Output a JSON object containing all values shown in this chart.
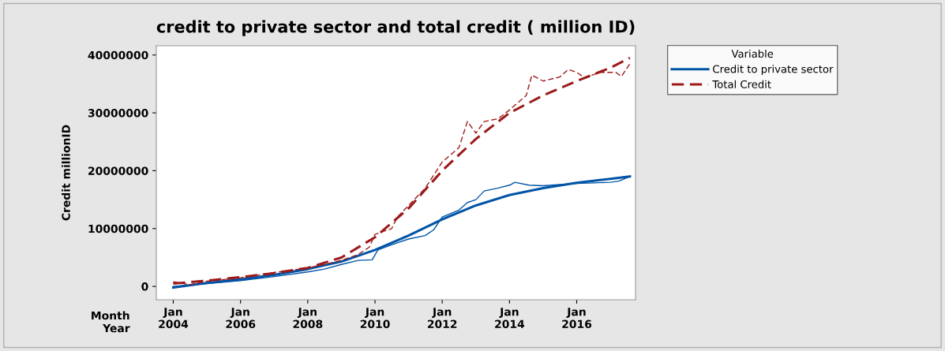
{
  "chart_data": {
    "type": "line",
    "title": "credit to private sector and total credit ( million ID)",
    "ylabel": "Credit millionID",
    "legend_title": "Variable",
    "legend": "top right",
    "grid": false,
    "marker": "none",
    "xlim": [
      "2003-07",
      "2017-10"
    ],
    "xticks": [
      {
        "value": "2004-01",
        "label": "Jan\n2004"
      },
      {
        "value": "2006-01",
        "label": "Jan\n2006"
      },
      {
        "value": "2008-01",
        "label": "Jan\n2008"
      },
      {
        "value": "2010-01",
        "label": "Jan\n2010"
      },
      {
        "value": "2012-01",
        "label": "Jan\n2012"
      },
      {
        "value": "2014-01",
        "label": "Jan\n2014"
      },
      {
        "value": "2016-01",
        "label": "Jan\n2016"
      }
    ],
    "ylim": [
      -2300000,
      41600000
    ],
    "yticks": [
      0,
      10000000,
      20000000,
      30000000,
      40000000
    ],
    "annotations": [
      "Month\nYear"
    ],
    "series": [
      {
        "name": "Credit to private sector",
        "color": "#0054a6",
        "line_style": "solid",
        "x": [
          "2004-01",
          "2005-01",
          "2006-01",
          "2007-01",
          "2008-01",
          "2009-01",
          "2010-01",
          "2011-01",
          "2012-01",
          "2013-01",
          "2014-01",
          "2015-01",
          "2016-01",
          "2017-01",
          "2017-08"
        ],
        "values": [
          -200000,
          600000,
          1200000,
          2000000,
          3000000,
          4300000,
          6300000,
          8800000,
          11600000,
          14000000,
          15800000,
          17000000,
          17900000,
          18600000,
          19000000
        ]
      },
      {
        "color": "#0054a6",
        "line_style": "solid",
        "x": [
          "2004-01",
          "2005-01",
          "2006-01",
          "2007-01",
          "2008-01",
          "2008-07",
          "2009-01",
          "2009-07",
          "2009-12",
          "2010-02",
          "2010-07",
          "2011-01",
          "2011-07",
          "2011-10",
          "2012-01",
          "2012-07",
          "2012-10",
          "2013-01",
          "2013-04",
          "2013-09",
          "2014-01",
          "2014-03",
          "2014-08",
          "2015-01",
          "2015-07",
          "2016-01",
          "2016-07",
          "2017-01",
          "2017-04",
          "2017-08"
        ],
        "values": [
          0,
          500000,
          1000000,
          1700000,
          2500000,
          3000000,
          3800000,
          4500000,
          4600000,
          6300000,
          7200000,
          8200000,
          8800000,
          9800000,
          12000000,
          13200000,
          14500000,
          15000000,
          16500000,
          17000000,
          17500000,
          18000000,
          17500000,
          17400000,
          17600000,
          17800000,
          17900000,
          18000000,
          18200000,
          19000000
        ]
      },
      {
        "name": "Total Credit",
        "color": "#9c1a1a",
        "line_style": "dashed",
        "x": [
          "2004-01",
          "2005-01",
          "2006-01",
          "2007-01",
          "2008-01",
          "2009-01",
          "2010-01",
          "2011-01",
          "2012-01",
          "2013-01",
          "2014-01",
          "2015-01",
          "2016-01",
          "2017-01",
          "2017-08"
        ],
        "values": [
          500000,
          1000000,
          1600000,
          2300000,
          3200000,
          5000000,
          8500000,
          13500000,
          20000000,
          25500000,
          30000000,
          33000000,
          35500000,
          37800000,
          39500000
        ]
      },
      {
        "color": "#9c1a1a",
        "line_style": "dashed",
        "x": [
          "2004-01",
          "2004-07",
          "2005-01",
          "2006-01",
          "2007-01",
          "2008-01",
          "2008-07",
          "2009-01",
          "2009-07",
          "2009-11",
          "2010-01",
          "2010-07",
          "2010-09",
          "2011-01",
          "2011-07",
          "2012-01",
          "2012-07",
          "2012-10",
          "2013-01",
          "2013-04",
          "2013-09",
          "2014-01",
          "2014-07",
          "2014-09",
          "2015-01",
          "2015-07",
          "2015-10",
          "2016-01",
          "2016-04",
          "2016-09",
          "2017-03",
          "2017-05",
          "2017-08"
        ],
        "values": [
          800000,
          300000,
          900000,
          1500000,
          2400000,
          3200000,
          3800000,
          4500000,
          5500000,
          6800000,
          9000000,
          10000000,
          12000000,
          14000000,
          17000000,
          21500000,
          24000000,
          28500000,
          26500000,
          28500000,
          29000000,
          30500000,
          33000000,
          36500000,
          35500000,
          36200000,
          37500000,
          37000000,
          36000000,
          37000000,
          37000000,
          36300000,
          38500000
        ]
      }
    ]
  }
}
